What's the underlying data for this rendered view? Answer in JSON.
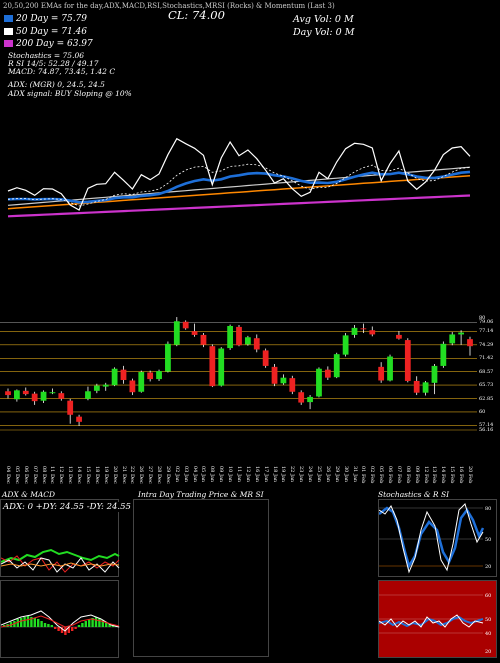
{
  "header": {
    "topline": "20,50,200 EMAs for the day,ADX,MACD,RSI,Stochastics,MRSI (Rocks) & Momentum (Last 3)",
    "ma_rows": [
      {
        "label": "20 Day = 75.79",
        "color": "#1e6fd8"
      },
      {
        "label": "50 Day = 71.46",
        "color": "#ffffff"
      },
      {
        "label": "200 Day = 63.97",
        "color": "#cc33cc"
      }
    ],
    "info_lines": [
      "Stochastics = 75.06",
      "R                 SI 14/5: 52.28 / 49.17",
      "MACD: 74.87, 73.45, 1.42  C"
    ],
    "adx_line": "ADX:                              (MGR) 0, 24.5, 24.5",
    "adx_signal": "ADX  signal:                                              BUY Sloping @ 10%",
    "close": "CL: 74.00",
    "avg_vol": "Avg Vol: 0   M",
    "day_vol": "Day Vol: 0   M"
  },
  "chart_data": {
    "type": "candlestick",
    "x": [
      "04 Dec",
      "05 Dec",
      "06 Dec",
      "07 Dec",
      "08 Dec",
      "11 Dec",
      "12 Dec",
      "13 Dec",
      "14 Dec",
      "15 Dec",
      "18 Dec",
      "19 Dec",
      "20 Dec",
      "21 Dec",
      "22 Dec",
      "26 Dec",
      "27 Dec",
      "28 Dec",
      "29 Dec",
      "02 Jan",
      "03 Jan",
      "04 Jan",
      "05 Jan",
      "08 Jan",
      "09 Jan",
      "10 Jan",
      "11 Jan",
      "12 Jan",
      "16 Jan",
      "17 Jan",
      "18 Jan",
      "19 Jan",
      "22 Jan",
      "23 Jan",
      "24 Jan",
      "25 Jan",
      "26 Jan",
      "29 Jan",
      "30 Jan",
      "31 Jan",
      "01 Feb",
      "02 Feb",
      "05 Feb",
      "06 Feb",
      "07 Feb",
      "08 Feb",
      "09 Feb",
      "12 Feb",
      "13 Feb",
      "14 Feb",
      "15 Feb",
      "16 Feb",
      "20 Feb"
    ],
    "y_ticks": [
      "80",
      "79.06",
      "77.14",
      "74.29",
      "71.42",
      "68.57",
      "65.73",
      "62.85",
      "60",
      "57.14",
      "56.16"
    ],
    "candles": [
      {
        "o": 64.4,
        "h": 65.0,
        "l": 62.9,
        "c": 63.6
      },
      {
        "o": 62.7,
        "h": 64.8,
        "l": 62.2,
        "c": 64.6
      },
      {
        "o": 64.5,
        "h": 65.2,
        "l": 63.5,
        "c": 63.8
      },
      {
        "o": 63.9,
        "h": 64.3,
        "l": 61.5,
        "c": 62.3
      },
      {
        "o": 62.4,
        "h": 64.6,
        "l": 61.9,
        "c": 64.3
      },
      {
        "o": 64.2,
        "h": 65.0,
        "l": 63.8,
        "c": 64.2
      },
      {
        "o": 64.0,
        "h": 64.4,
        "l": 62.4,
        "c": 62.8
      },
      {
        "o": 62.4,
        "h": 62.8,
        "l": 57.5,
        "c": 59.4
      },
      {
        "o": 59.0,
        "h": 59.4,
        "l": 57.0,
        "c": 57.9
      },
      {
        "o": 62.8,
        "h": 65.4,
        "l": 62.5,
        "c": 64.4
      },
      {
        "o": 64.5,
        "h": 66.0,
        "l": 64.0,
        "c": 65.6
      },
      {
        "o": 65.4,
        "h": 66.2,
        "l": 64.5,
        "c": 65.8
      },
      {
        "o": 65.7,
        "h": 69.5,
        "l": 65.5,
        "c": 69.2
      },
      {
        "o": 69.0,
        "h": 69.8,
        "l": 66.0,
        "c": 66.8
      },
      {
        "o": 66.7,
        "h": 67.1,
        "l": 63.6,
        "c": 64.2
      },
      {
        "o": 64.3,
        "h": 68.8,
        "l": 64.1,
        "c": 68.5
      },
      {
        "o": 68.4,
        "h": 68.8,
        "l": 66.5,
        "c": 67.0
      },
      {
        "o": 67.0,
        "h": 69.0,
        "l": 66.6,
        "c": 68.7
      },
      {
        "o": 68.6,
        "h": 75.0,
        "l": 68.4,
        "c": 74.5
      },
      {
        "o": 74.3,
        "h": 80.2,
        "l": 74.0,
        "c": 79.3
      },
      {
        "o": 79.2,
        "h": 79.5,
        "l": 77.5,
        "c": 77.8
      },
      {
        "o": 77.2,
        "h": 78.8,
        "l": 76.0,
        "c": 76.4
      },
      {
        "o": 76.4,
        "h": 76.8,
        "l": 73.8,
        "c": 74.3
      },
      {
        "o": 74.0,
        "h": 74.4,
        "l": 65.3,
        "c": 65.5
      },
      {
        "o": 65.6,
        "h": 73.8,
        "l": 65.4,
        "c": 73.5
      },
      {
        "o": 73.6,
        "h": 78.6,
        "l": 73.2,
        "c": 78.3
      },
      {
        "o": 78.1,
        "h": 78.5,
        "l": 74.0,
        "c": 74.2
      },
      {
        "o": 74.4,
        "h": 76.2,
        "l": 74.1,
        "c": 75.9
      },
      {
        "o": 75.7,
        "h": 76.5,
        "l": 72.7,
        "c": 73.3
      },
      {
        "o": 73.1,
        "h": 73.5,
        "l": 69.4,
        "c": 69.8
      },
      {
        "o": 69.6,
        "h": 70.2,
        "l": 65.5,
        "c": 66.0
      },
      {
        "o": 66.1,
        "h": 68.0,
        "l": 65.8,
        "c": 67.3
      },
      {
        "o": 67.2,
        "h": 67.7,
        "l": 63.8,
        "c": 64.3
      },
      {
        "o": 64.2,
        "h": 64.6,
        "l": 61.5,
        "c": 62.0
      },
      {
        "o": 62.1,
        "h": 63.6,
        "l": 60.6,
        "c": 63.2
      },
      {
        "o": 63.3,
        "h": 69.5,
        "l": 63.1,
        "c": 69.2
      },
      {
        "o": 69.0,
        "h": 69.7,
        "l": 66.8,
        "c": 67.3
      },
      {
        "o": 67.4,
        "h": 72.6,
        "l": 67.2,
        "c": 72.3
      },
      {
        "o": 72.2,
        "h": 76.8,
        "l": 71.8,
        "c": 76.3
      },
      {
        "o": 76.4,
        "h": 78.5,
        "l": 75.8,
        "c": 77.9
      },
      {
        "o": 77.8,
        "h": 78.8,
        "l": 76.8,
        "c": 77.6
      },
      {
        "o": 77.4,
        "h": 78.2,
        "l": 76.1,
        "c": 76.5
      },
      {
        "o": 69.6,
        "h": 70.6,
        "l": 66.2,
        "c": 66.7
      },
      {
        "o": 66.7,
        "h": 72.2,
        "l": 66.5,
        "c": 71.8
      },
      {
        "o": 76.4,
        "h": 77.2,
        "l": 75.4,
        "c": 75.6
      },
      {
        "o": 75.3,
        "h": 75.7,
        "l": 66.3,
        "c": 66.6
      },
      {
        "o": 66.6,
        "h": 67.6,
        "l": 63.6,
        "c": 64.1
      },
      {
        "o": 64.1,
        "h": 66.6,
        "l": 63.5,
        "c": 66.3
      },
      {
        "o": 66.2,
        "h": 70.2,
        "l": 63.8,
        "c": 69.8
      },
      {
        "o": 69.8,
        "h": 75.0,
        "l": 69.4,
        "c": 74.5
      },
      {
        "o": 74.6,
        "h": 77.0,
        "l": 74.2,
        "c": 76.5
      },
      {
        "o": 76.5,
        "h": 77.4,
        "l": 74.3,
        "c": 76.9
      },
      {
        "o": 75.5,
        "h": 76.0,
        "l": 72.0,
        "c": 74.0
      }
    ]
  },
  "panels": {
    "left_title": "ADX  & MACD",
    "middle_title": "Intra  Day Trading Price  & MR                    SI",
    "right_title": "Stochastics & R                SI",
    "adx_text": "ADX: 0   +DY: 24.55  -DY: 24.55",
    "stoch_labels": [
      "80",
      "50",
      "20"
    ],
    "rsi_labels": [
      "60",
      "50",
      "40",
      "20"
    ]
  },
  "colors": {
    "up": "#22dd22",
    "down": "#ee2222",
    "ema20": "#1e6fd8",
    "ema200": "#cc33cc",
    "rsi_bg": "#aa0000"
  }
}
